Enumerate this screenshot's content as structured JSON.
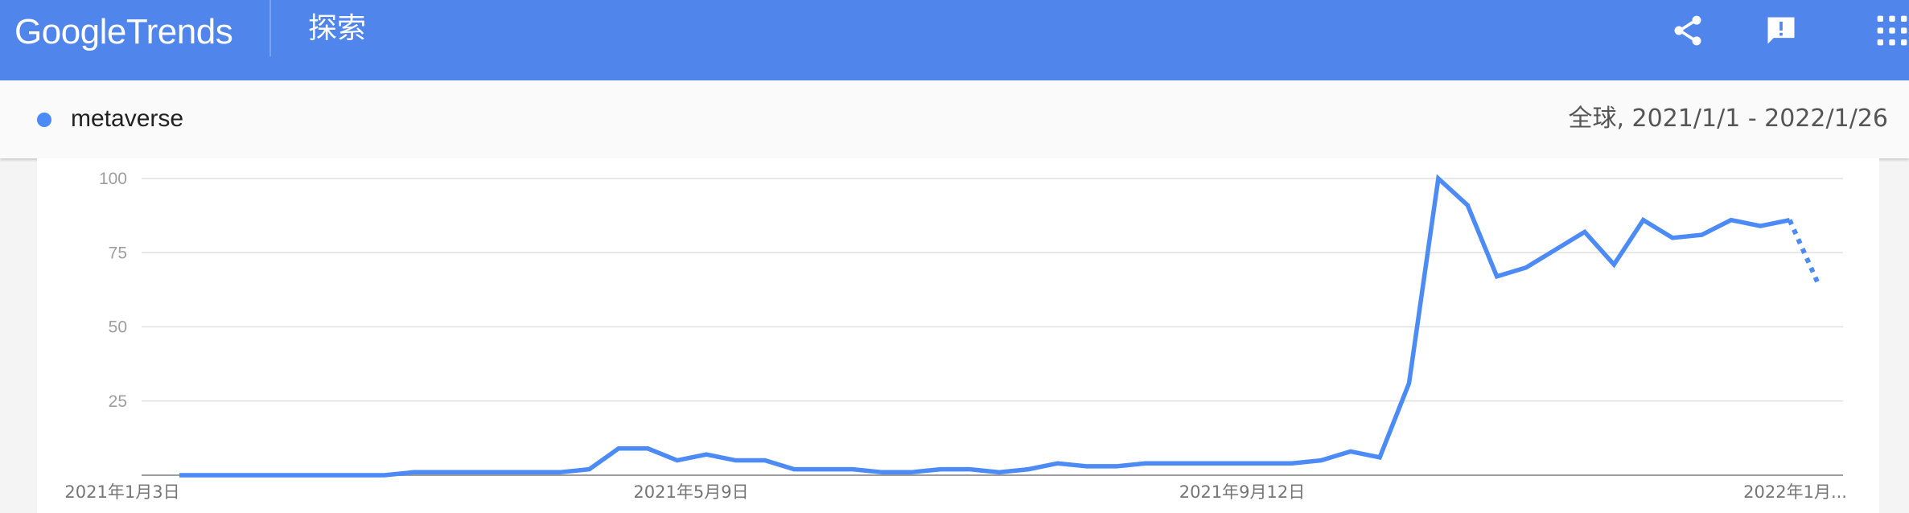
{
  "header": {
    "logo_google": "Google",
    "logo_trends": "Trends",
    "section_title": "探索",
    "icons": [
      "share-icon",
      "feedback-icon",
      "apps-grid-icon"
    ]
  },
  "query": {
    "term": "metaverse",
    "term_color": "#4c8bf5",
    "range": "全球, 2021/1/1 - 2022/1/26"
  },
  "colors": {
    "header_bg": "#5085ec",
    "line": "#4c8bf5",
    "grid": "#e0e0e0"
  },
  "chart_data": {
    "type": "line",
    "title": "",
    "xlabel": "",
    "ylabel": "",
    "ylim": [
      0,
      100
    ],
    "y_ticks": [
      "100",
      "75",
      "50",
      "25"
    ],
    "x_tick_labels": [
      "2021年1月3日",
      "2021年5月9日",
      "2021年9月12日",
      "2022年1月..."
    ],
    "grid": true,
    "partial_last_segment": "dotted",
    "series": [
      {
        "name": "metaverse",
        "values": [
          0,
          0,
          0,
          0,
          0,
          0,
          0,
          0,
          1,
          1,
          1,
          1,
          1,
          1,
          2,
          9,
          9,
          5,
          7,
          5,
          5,
          2,
          2,
          2,
          1,
          1,
          2,
          2,
          1,
          2,
          4,
          3,
          3,
          4,
          4,
          4,
          4,
          4,
          4,
          5,
          8,
          6,
          31,
          100,
          91,
          67,
          70,
          76,
          82,
          71,
          86,
          80,
          81,
          86,
          84,
          86,
          64
        ]
      }
    ]
  }
}
